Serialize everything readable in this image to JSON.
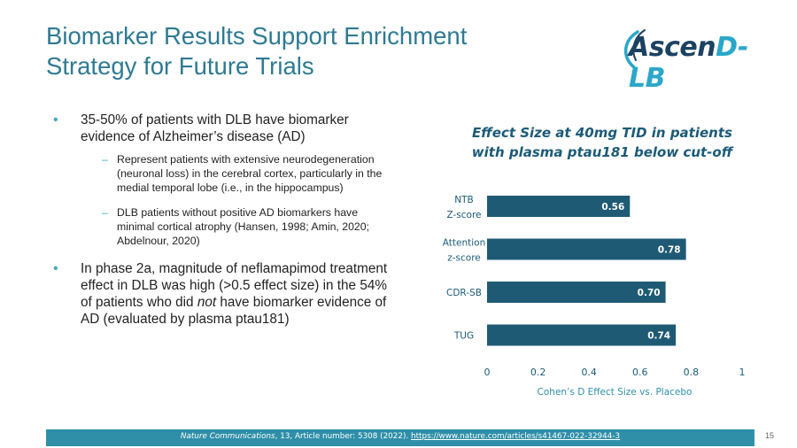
{
  "slide": {
    "title_line1": "Biomarker Results Support Enrichment",
    "title_line2": "Strategy for Future Trials",
    "page_number": "15",
    "colors": {
      "title": "#2f7a92",
      "bar": "#1f5a75",
      "footer": "#2f8fa8",
      "bullet": "#3aa7c2"
    }
  },
  "logo": {
    "part1": "Ascen",
    "part2": "D-LB"
  },
  "bullets": {
    "main1": "35-50% of patients with DLB have biomarker evidence of Alzheimer’s disease (AD)",
    "sub1": "Represent patients with extensive neurodegeneration (neuronal loss) in the cerebral cortex, particularly in the medial temporal lobe (i.e., in the hippocampus)",
    "sub2": "DLB patients without positive AD biomarkers have minimal cortical atrophy (Hansen, 1998; Amin, 2020; Abdelnour, 2020)",
    "main2_before": "In phase 2a, magnitude of neflamapimod treatment effect in DLB was high (>0.5 effect size) in the 54% of patients who did ",
    "main2_italic": "not",
    "main2_after": " have biomarker evidence of AD (evaluated by plasma ptau181)"
  },
  "chart_data": {
    "type": "bar",
    "orientation": "horizontal",
    "title": "Effect Size at 40mg TID in patients with plasma ptau181 below cut-off",
    "title_line1": "Effect Size at 40mg TID in patients",
    "title_line2": "with plasma ptau181 below cut-off",
    "xlabel": "Cohen’s D Effect Size vs. Placebo",
    "xlim": [
      0,
      1
    ],
    "ticks": [
      "0",
      "0.2",
      "0.4",
      "0.6",
      "0.8",
      "1"
    ],
    "categories": [
      {
        "line1": "NTB",
        "line2": "Z-score"
      },
      {
        "line1": "Attention",
        "line2": "z-score"
      },
      {
        "line1": "CDR-SB",
        "line2": ""
      },
      {
        "line1": "TUG",
        "line2": ""
      }
    ],
    "values": [
      0.56,
      0.78,
      0.7,
      0.74
    ],
    "data_labels": [
      "0.56",
      "0.78",
      "0.70",
      "0.74"
    ],
    "grid": false
  },
  "footer": {
    "journal": "Nature Communications",
    "citation": ", 13, Article number: 5308 (2022). ",
    "url": "https://www.nature.com/articles/s41467-022-32944-3"
  }
}
